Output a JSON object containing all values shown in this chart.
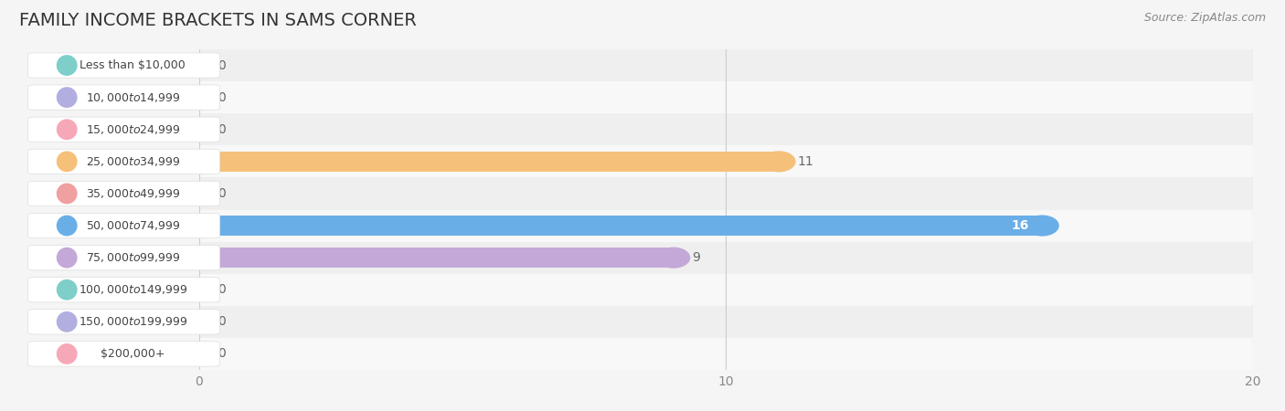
{
  "title": "FAMILY INCOME BRACKETS IN SAMS CORNER",
  "source": "Source: ZipAtlas.com",
  "categories": [
    "Less than $10,000",
    "$10,000 to $14,999",
    "$15,000 to $24,999",
    "$25,000 to $34,999",
    "$35,000 to $49,999",
    "$50,000 to $74,999",
    "$75,000 to $99,999",
    "$100,000 to $149,999",
    "$150,000 to $199,999",
    "$200,000+"
  ],
  "values": [
    0,
    0,
    0,
    11,
    0,
    16,
    9,
    0,
    0,
    0
  ],
  "bar_colors": [
    "#7ececa",
    "#b3aee0",
    "#f7a8b8",
    "#f5c07a",
    "#f0a0a0",
    "#6aaee8",
    "#c4a8d8",
    "#7ececa",
    "#b3aee0",
    "#f7a8b8"
  ],
  "xlim": [
    0,
    20
  ],
  "xticks": [
    0,
    10,
    20
  ],
  "background_color": "#f5f5f5",
  "row_bg_even": "#efefef",
  "row_bg_odd": "#f8f8f8",
  "title_fontsize": 14,
  "value_fontsize": 10,
  "cat_fontsize": 9
}
